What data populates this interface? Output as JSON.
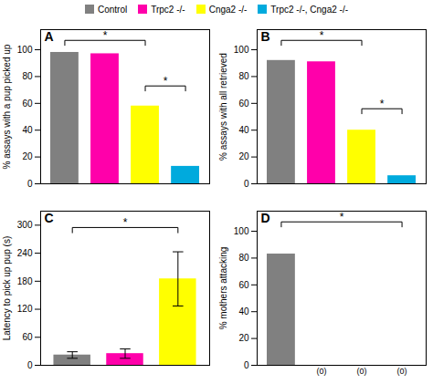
{
  "chart_data": [
    {
      "type": "bar",
      "title": "A",
      "categories": [
        null,
        null,
        null,
        null
      ],
      "values": [
        98,
        97,
        58,
        13
      ],
      "colors": [
        "#808080",
        "#FF00AA",
        "#FFFF00",
        "#00AADD"
      ],
      "ylabel": "% assays with a pup picked up",
      "ylim": [
        0,
        115
      ],
      "yticks": [
        0,
        20,
        40,
        60,
        80,
        100
      ],
      "grid": false,
      "tick_labels": "y",
      "brackets": [
        {
          "from": 0,
          "to": 2,
          "y": 107,
          "y_end": 103,
          "label": "*"
        },
        {
          "from": 2,
          "to": 3,
          "y": 73,
          "y_end": 69,
          "label": "*"
        }
      ]
    },
    {
      "type": "bar",
      "title": "B",
      "categories": [
        null,
        null,
        null,
        null
      ],
      "values": [
        92,
        91,
        40,
        6
      ],
      "colors": [
        "#808080",
        "#FF00AA",
        "#FFFF00",
        "#00AADD"
      ],
      "ylabel": "% assays with all retrieved",
      "ylim": [
        0,
        115
      ],
      "yticks": [
        0,
        20,
        40,
        60,
        80,
        100
      ],
      "grid": false,
      "tick_labels": "y",
      "legend": "top",
      "legend_labels": [
        "Control",
        "Trpc2 -/-",
        "Cnga2 -/-",
        "Trpc2 -/-, Cnga2 -/-"
      ],
      "brackets": [
        {
          "from": 0,
          "to": 2,
          "y": 107,
          "y_end": 103,
          "label": "*"
        },
        {
          "from": 2,
          "to": 3,
          "y": 56,
          "y_end": 52,
          "label": "*"
        }
      ]
    },
    {
      "type": "bar",
      "title": "C",
      "categories": [
        null,
        null,
        null
      ],
      "values": [
        22,
        25,
        185
      ],
      "errors": [
        7,
        10,
        58
      ],
      "colors": [
        "#808080",
        "#FF00AA",
        "#FFFF00"
      ],
      "ylabel": "Latency to pick up pup (s)",
      "ylim": [
        0,
        330
      ],
      "yticks": [
        0,
        60,
        120,
        180,
        240,
        300
      ],
      "grid": false,
      "tick_labels": "y",
      "brackets": [
        {
          "from": 0,
          "to": 2,
          "y": 295,
          "y_end": 283,
          "label": "*"
        }
      ]
    },
    {
      "type": "bar",
      "title": "D",
      "categories": [
        null,
        null,
        null,
        null
      ],
      "values": [
        83,
        0,
        0,
        0
      ],
      "colors": [
        "#808080",
        "#808080",
        "#808080",
        "#808080"
      ],
      "ylabel": "% mothers attacking",
      "ylim": [
        0,
        115
      ],
      "yticks": [
        0,
        20,
        40,
        60,
        80,
        100
      ],
      "grid": false,
      "tick_labels": "y",
      "annotations": [
        null,
        "(0)",
        "(0)",
        "(0)"
      ],
      "brackets": [
        {
          "from": 0,
          "to": 3,
          "y": 107,
          "y_end": 103,
          "label": "*"
        }
      ]
    }
  ]
}
